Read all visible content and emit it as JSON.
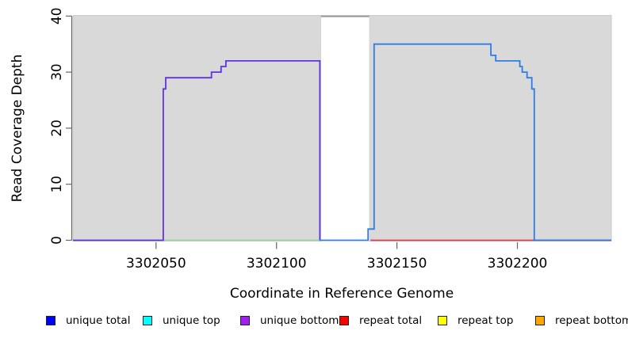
{
  "chart_data": {
    "type": "line",
    "subtype": "step-coverage",
    "title": "",
    "xlabel": "Coordinate in Reference Genome",
    "ylabel": "Read Coverage Depth",
    "xlim": [
      3302015.5,
      3302239
    ],
    "ylim": [
      0,
      40
    ],
    "x_ticks": [
      3302050,
      3302100,
      3302150,
      3302200
    ],
    "y_ticks": [
      0,
      10,
      20,
      30,
      40
    ],
    "grid": false,
    "plot_bg": "#ffffff",
    "background_regions": [
      {
        "name": "unique-region-left",
        "x0": 3302015.5,
        "x1": 3302118.5,
        "color": "#d9d9d9",
        "edge": "#c9c9c9"
      },
      {
        "name": "unique-region-right",
        "x0": 3302138.5,
        "x1": 3302239,
        "color": "#d9d9d9",
        "edge": "#c9c9c9"
      }
    ],
    "gap_region": {
      "name": "repeat-gap",
      "x0": 3302118.5,
      "x1": 3302138.5,
      "fill": "#ffffff",
      "top_border_color": "#999999"
    },
    "series": [
      {
        "name": "green baseline",
        "color": "#9fd49f",
        "width": 1.8,
        "points": [
          [
            3302053,
            0
          ],
          [
            3302118,
            0
          ]
        ]
      },
      {
        "name": "repeat total baseline",
        "color": "#e0404e",
        "width": 1.8,
        "points": [
          [
            3302139,
            0
          ],
          [
            3302239,
            0
          ]
        ]
      },
      {
        "name": "unique bottom",
        "color": "#5f33e1",
        "width": 1.8,
        "points": [
          [
            3302015.5,
            0
          ],
          [
            3302053,
            0
          ],
          [
            3302053,
            27
          ],
          [
            3302054,
            27
          ],
          [
            3302054,
            29
          ],
          [
            3302073,
            29
          ],
          [
            3302073,
            30
          ],
          [
            3302077,
            30
          ],
          [
            3302077,
            31
          ],
          [
            3302079,
            31
          ],
          [
            3302079,
            32
          ],
          [
            3302118,
            32
          ],
          [
            3302118,
            0
          ]
        ]
      },
      {
        "name": "unique total",
        "color": "#2e7ce8",
        "width": 1.8,
        "points": [
          [
            3302118,
            0
          ],
          [
            3302138,
            0
          ],
          [
            3302138,
            2
          ],
          [
            3302140.5,
            2
          ],
          [
            3302140.5,
            35
          ],
          [
            3302189,
            35
          ],
          [
            3302189,
            33
          ],
          [
            3302191,
            33
          ],
          [
            3302191,
            32
          ],
          [
            3302201,
            32
          ],
          [
            3302201,
            31
          ],
          [
            3302202,
            31
          ],
          [
            3302202,
            30
          ],
          [
            3302204,
            30
          ],
          [
            3302204,
            29
          ],
          [
            3302206,
            29
          ],
          [
            3302206,
            27
          ],
          [
            3302207,
            27
          ],
          [
            3302207,
            0
          ],
          [
            3302239,
            0
          ]
        ]
      }
    ],
    "legend_position": "bottom"
  },
  "legend": {
    "items": [
      {
        "label": "unique total",
        "color": "#0000ff"
      },
      {
        "label": "unique top",
        "color": "#00ffff"
      },
      {
        "label": "unique bottom",
        "color": "#a020f0"
      },
      {
        "label": "repeat total",
        "color": "#ff0000"
      },
      {
        "label": "repeat top",
        "color": "#ffff00"
      },
      {
        "label": "repeat bottom",
        "color": "#ffa500"
      }
    ]
  },
  "axis_style": {
    "tick_color": "#666666",
    "label_color": "#000000",
    "tick_font_px": 17,
    "title_font_px": 17
  }
}
